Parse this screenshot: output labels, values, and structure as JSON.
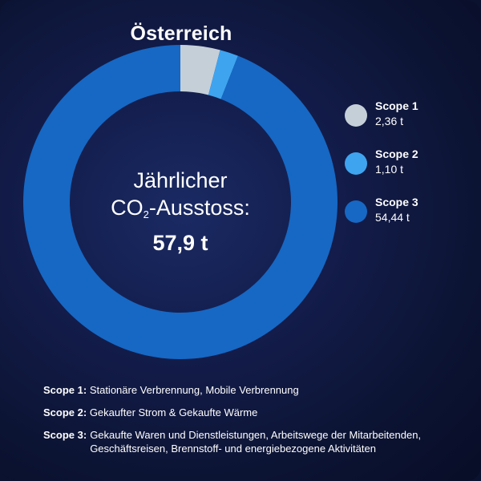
{
  "title": "Österreich",
  "center": {
    "line1": "Jährlicher",
    "line2_prefix": "CO",
    "line2_sub": "2",
    "line2_suffix": "-Ausstoss:",
    "value": "57,9 t"
  },
  "chart_data": {
    "type": "pie",
    "title": "Österreich",
    "unit": "t",
    "total": 57.9,
    "series": [
      {
        "name": "Scope 1",
        "value": 2.36,
        "label": "2,36 t",
        "color": "#c5cfd8"
      },
      {
        "name": "Scope 2",
        "value": 1.1,
        "label": "1,10 t",
        "color": "#3ea4f0"
      },
      {
        "name": "Scope 3",
        "value": 54.44,
        "label": "54,44 t",
        "color": "#1668c4"
      }
    ]
  },
  "notes": [
    {
      "label": "Scope 1:",
      "text": "Stationäre Verbrennung, Mobile Verbrennung"
    },
    {
      "label": "Scope 2:",
      "text": "Gekaufter Strom & Gekaufte Wärme"
    },
    {
      "label": "Scope 3:",
      "text": "Gekaufte Waren und Dienstleistungen, Arbeitswege der Mitarbeitenden, Geschäftsreisen, Brennstoff- und energiebezogene Aktivitäten"
    }
  ]
}
